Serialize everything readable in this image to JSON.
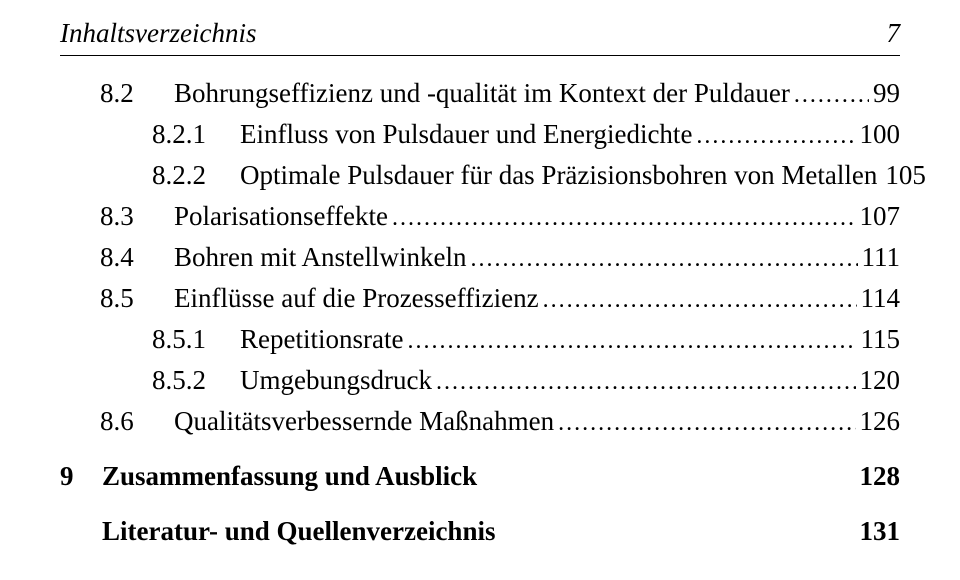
{
  "header": {
    "title": "Inhaltsverzeichnis",
    "page_number": "7"
  },
  "toc": [
    {
      "num": "8.2",
      "label": "Bohrungseffizienz und -qualität im Kontext der Puldauer",
      "page": "99",
      "indent": 1,
      "bold": false,
      "leader": true,
      "num_class": "w-sub"
    },
    {
      "num": "8.2.1",
      "label": "Einfluss von Pulsdauer und Energiedichte",
      "page": "100",
      "indent": 2,
      "bold": false,
      "leader": true,
      "num_class": "w-subsub"
    },
    {
      "num": "8.2.2",
      "label": "Optimale Pulsdauer für das Präzisionsbohren von Metallen",
      "page": "105",
      "indent": 2,
      "bold": false,
      "leader": true,
      "num_class": "w-subsub"
    },
    {
      "num": "8.3",
      "label": "Polarisationseffekte",
      "page": "107",
      "indent": 1,
      "bold": false,
      "leader": true,
      "num_class": "w-sub"
    },
    {
      "num": "8.4",
      "label": "Bohren mit Anstellwinkeln",
      "page": "111",
      "indent": 1,
      "bold": false,
      "leader": true,
      "num_class": "w-sub"
    },
    {
      "num": "8.5",
      "label": "Einflüsse auf die Prozesseffizienz",
      "page": "114",
      "indent": 1,
      "bold": false,
      "leader": true,
      "num_class": "w-sub"
    },
    {
      "num": "8.5.1",
      "label": "Repetitionsrate",
      "page": "115",
      "indent": 2,
      "bold": false,
      "leader": true,
      "num_class": "w-subsub"
    },
    {
      "num": "8.5.2",
      "label": "Umgebungsdruck",
      "page": "120",
      "indent": 2,
      "bold": false,
      "leader": true,
      "num_class": "w-subsub"
    },
    {
      "num": "8.6",
      "label": "Qualitätsverbessernde Maßnahmen",
      "page": "126",
      "indent": 1,
      "bold": false,
      "leader": true,
      "num_class": "w-sub"
    },
    {
      "num": "9",
      "label": "Zusammenfassung und Ausblick",
      "page": "128",
      "indent": 0,
      "bold": true,
      "leader": false,
      "num_class": "w-chap",
      "gap_before": true
    },
    {
      "num": "",
      "label": "Literatur- und Quellenverzeichnis",
      "page": "131",
      "indent": 0,
      "bold": true,
      "leader": false,
      "num_class": "w-chap",
      "gap_before": true
    }
  ]
}
